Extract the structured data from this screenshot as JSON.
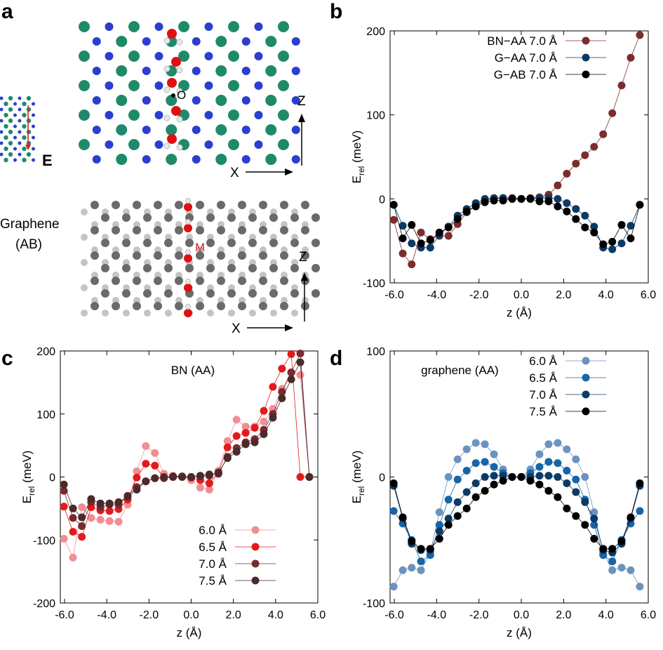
{
  "panel_labels": {
    "a": "a",
    "b": "b",
    "c": "c",
    "d": "d"
  },
  "structures": {
    "field_label": "E",
    "oxygen_label": "O",
    "midpoint_label": "M",
    "graphene_label_line1": "Graphene",
    "graphene_label_line2": "(AB)",
    "axis_x": "X",
    "axis_z": "Z"
  },
  "colors": {
    "bn_aa_7": "#7b2d2d",
    "g_aa_7": "#0d3a64",
    "g_ab_7": "#000000",
    "bn_60": "#f08e93",
    "bn_65": "#e31a1c",
    "bn_70": "#7a2a30",
    "bn_75": "#4a2a2a",
    "g_60": "#6b93bf",
    "g_65": "#1565a8",
    "g_70": "#0d3a64",
    "g_75": "#000000"
  },
  "chart_data": [
    {
      "panel": "b",
      "type": "line",
      "title": "",
      "xlabel": "z (Å)",
      "ylabel": "E",
      "ylabel_sub": "rel",
      "ylabel_unit": "(meV)",
      "xlim": [
        -6.2,
        6.0
      ],
      "ylim": [
        -100,
        200
      ],
      "xticks": [
        "-6.0",
        "-4.0",
        "-2.0",
        "0.0",
        "2.0",
        "4.0",
        "6.0"
      ],
      "xtick_values": [
        -6,
        -4,
        -2,
        0,
        2,
        4,
        6
      ],
      "yticks": [
        "-100",
        "0",
        "100",
        "200"
      ],
      "ytick_values": [
        -100,
        0,
        100,
        200
      ],
      "legend_position": "top-right",
      "series": [
        {
          "name": "BN−AA 7.0 Å",
          "color_key": "bn_aa_7",
          "x": [
            -6.03,
            -5.6,
            -5.18,
            -4.74,
            -4.3,
            -3.87,
            -3.44,
            -3.01,
            -2.58,
            -2.15,
            -1.72,
            -1.29,
            -0.86,
            -0.43,
            0,
            0.43,
            0.86,
            1.29,
            1.72,
            2.15,
            2.58,
            3.01,
            3.44,
            3.87,
            4.3,
            4.74,
            5.17,
            5.6
          ],
          "y": [
            -25,
            -65,
            -78,
            -40,
            -48,
            -44,
            -44,
            -30,
            -16,
            -7,
            -2,
            0,
            1,
            1,
            0,
            1,
            2,
            5,
            16,
            30,
            42,
            52,
            62,
            77,
            102,
            135,
            168,
            195
          ]
        },
        {
          "name": "G−AA 7.0 Å",
          "color_key": "g_aa_7",
          "x": [
            -6.03,
            -5.6,
            -5.18,
            -4.74,
            -4.3,
            -3.87,
            -3.44,
            -3.01,
            -2.58,
            -2.15,
            -1.72,
            -1.29,
            -0.86,
            -0.43,
            0,
            0.43,
            0.86,
            1.29,
            1.72,
            2.15,
            2.58,
            3.01,
            3.44,
            3.87,
            4.3,
            4.74,
            5.17,
            5.6
          ],
          "y": [
            -7,
            -32,
            -53,
            -58,
            -58,
            -43,
            -33,
            -20,
            -12,
            -5,
            0,
            1,
            1,
            0,
            0,
            0,
            1,
            1,
            0,
            -5,
            -12,
            -20,
            -33,
            -58,
            -60,
            -53,
            -32,
            -7
          ]
        },
        {
          "name": "G−AB 7.0 Å",
          "color_key": "g_ab_7",
          "x": [
            -6.03,
            -5.6,
            -5.18,
            -4.74,
            -4.3,
            -3.87,
            -3.44,
            -3.01,
            -2.58,
            -2.15,
            -1.72,
            -1.29,
            -0.86,
            -0.43,
            0,
            0.43,
            0.86,
            1.29,
            1.72,
            2.15,
            2.58,
            3.01,
            3.44,
            3.87,
            4.3,
            4.74,
            5.17,
            5.6
          ],
          "y": [
            -7,
            -47,
            -31,
            -53,
            -49,
            -40,
            -34,
            -24,
            -15,
            -9,
            -4,
            -2,
            -2,
            0,
            0,
            0,
            -3,
            -3,
            -9,
            -15,
            -24,
            -34,
            -40,
            -54,
            -51,
            -31,
            -47,
            -7
          ]
        }
      ]
    },
    {
      "panel": "c",
      "type": "line",
      "title": "BN (AA)",
      "xlabel": "z (Å)",
      "ylabel": "E",
      "ylabel_sub": "rel",
      "ylabel_unit": "(meV)",
      "xlim": [
        -6.2,
        6.0
      ],
      "ylim": [
        -200,
        200
      ],
      "xticks": [
        "-6.0",
        "-4.0",
        "-2.0",
        "0.0",
        "2.0",
        "4.0",
        "6.0"
      ],
      "xtick_values": [
        -6,
        -4,
        -2,
        0,
        2,
        4,
        6
      ],
      "yticks": [
        "-200",
        "-100",
        "0",
        "100",
        "200"
      ],
      "ytick_values": [
        -200,
        -100,
        0,
        100,
        200
      ],
      "legend_position": "bottom-right",
      "series": [
        {
          "name": "6.0 Å",
          "color_key": "bn_60",
          "x": [
            -6.03,
            -5.6,
            -5.18,
            -4.74,
            -4.3,
            -3.87,
            -3.44,
            -3.01,
            -2.58,
            -2.15,
            -1.72,
            -1.29,
            -0.86,
            -0.43,
            0,
            0.43,
            0.86,
            1.29,
            1.72,
            2.15,
            2.58,
            3.01,
            3.44,
            3.87,
            4.3,
            4.74,
            5.17,
            5.6
          ],
          "y": [
            -98,
            -128,
            -48,
            -65,
            -68,
            -70,
            -71,
            -44,
            9,
            49,
            38,
            5,
            2,
            0,
            -5,
            -17,
            -20,
            10,
            57,
            91,
            80,
            80,
            88,
            108,
            140,
            165,
            162,
            0
          ]
        },
        {
          "name": "6.5 Å",
          "color_key": "bn_65",
          "x": [
            -6.03,
            -5.6,
            -5.18,
            -4.74,
            -4.3,
            -3.87,
            -3.44,
            -3.01,
            -2.58,
            -2.15,
            -1.72,
            -1.29,
            -0.86,
            -0.43,
            0,
            0.43,
            0.86,
            1.29,
            1.72,
            2.15,
            2.58,
            3.01,
            3.44,
            3.87,
            4.3,
            4.74,
            5.17,
            5.6
          ],
          "y": [
            -47,
            -87,
            -95,
            -48,
            -53,
            -54,
            -51,
            -36,
            -1,
            21,
            18,
            -2,
            0,
            0,
            -1,
            -5,
            -10,
            7,
            47,
            65,
            70,
            78,
            105,
            143,
            172,
            195,
            0,
            0
          ]
        },
        {
          "name": "7.0 Å",
          "color_key": "bn_70",
          "x": [
            -6.03,
            -5.6,
            -5.18,
            -4.74,
            -4.3,
            -3.87,
            -3.44,
            -3.01,
            -2.58,
            -2.15,
            -1.72,
            -1.29,
            -0.86,
            -0.43,
            0,
            0.43,
            0.86,
            1.29,
            1.72,
            2.15,
            2.58,
            3.01,
            3.44,
            3.87,
            4.3,
            4.74,
            5.17,
            5.6
          ],
          "y": [
            -22,
            -65,
            -78,
            -40,
            -48,
            -44,
            -44,
            -30,
            -16,
            -7,
            -2,
            0,
            1,
            1,
            0,
            1,
            2,
            5,
            32,
            46,
            55,
            60,
            75,
            100,
            135,
            166,
            196,
            0
          ]
        },
        {
          "name": "7.5 Å",
          "color_key": "bn_75",
          "x": [
            -6.03,
            -5.6,
            -5.18,
            -4.74,
            -4.3,
            -3.87,
            -3.44,
            -3.01,
            -2.58,
            -2.15,
            -1.72,
            -1.29,
            -0.86,
            -0.43,
            0,
            0.43,
            0.86,
            1.29,
            1.72,
            2.15,
            2.58,
            3.01,
            3.44,
            3.87,
            4.3,
            4.74,
            5.17,
            5.6
          ],
          "y": [
            -12,
            -50,
            -64,
            -35,
            -42,
            -42,
            -40,
            -31,
            -20,
            -7,
            -2,
            -1,
            0,
            0,
            0,
            2,
            4,
            7,
            30,
            40,
            52,
            55,
            68,
            94,
            125,
            155,
            182,
            0
          ]
        }
      ]
    },
    {
      "panel": "d",
      "type": "line",
      "title": "graphene (AA)",
      "xlabel": "z (Å)",
      "ylabel": "E",
      "ylabel_sub": "rel",
      "ylabel_unit": "(meV)",
      "xlim": [
        -6.2,
        6.0
      ],
      "ylim": [
        -100,
        100
      ],
      "xticks": [
        "-6.0",
        "-4.0",
        "-2.0",
        "0.0",
        "2.0",
        "4.0",
        "6.0"
      ],
      "xtick_values": [
        -6,
        -4,
        -2,
        0,
        2,
        4,
        6
      ],
      "yticks": [
        "-100",
        "0",
        "100"
      ],
      "ytick_values": [
        -100,
        0,
        100
      ],
      "legend_position": "top-right",
      "series": [
        {
          "name": "6.0 Å",
          "color_key": "g_60",
          "x": [
            -6.03,
            -5.6,
            -5.18,
            -4.74,
            -4.3,
            -3.87,
            -3.44,
            -3.01,
            -2.58,
            -2.15,
            -1.72,
            -1.29,
            -0.86,
            -0.43,
            0,
            0.43,
            0.86,
            1.29,
            1.72,
            2.15,
            2.58,
            3.01,
            3.44,
            3.87,
            4.3,
            4.74,
            5.17,
            5.6
          ],
          "y": [
            -87,
            -74,
            -72,
            -74,
            -60,
            -28,
            0,
            14,
            22,
            27,
            26,
            18,
            6,
            0,
            0,
            6,
            18,
            26,
            27,
            22,
            14,
            0,
            -28,
            -60,
            -74,
            -72,
            -74,
            -87
          ]
        },
        {
          "name": "6.5 Å",
          "color_key": "g_65",
          "x": [
            -6.03,
            -5.6,
            -5.18,
            -4.74,
            -4.3,
            -3.87,
            -3.44,
            -3.01,
            -2.58,
            -2.15,
            -1.72,
            -1.29,
            -0.86,
            -0.43,
            0,
            0.43,
            0.86,
            1.29,
            1.72,
            2.15,
            2.58,
            3.01,
            3.44,
            3.87,
            4.3,
            4.74,
            5.17,
            5.6
          ],
          "y": [
            -27,
            -37,
            -50,
            -67,
            -62,
            -38,
            -18,
            -2,
            5,
            11,
            12,
            8,
            3,
            0,
            0,
            3,
            8,
            12,
            11,
            5,
            -2,
            -18,
            -38,
            -62,
            -67,
            -50,
            -37,
            -27
          ]
        },
        {
          "name": "7.0 Å",
          "color_key": "g_70",
          "x": [
            -6.03,
            -5.6,
            -5.18,
            -4.74,
            -4.3,
            -3.87,
            -3.44,
            -3.01,
            -2.58,
            -2.15,
            -1.72,
            -1.29,
            -0.86,
            -0.43,
            0,
            0.43,
            0.86,
            1.29,
            1.72,
            2.15,
            2.58,
            3.01,
            3.44,
            3.87,
            4.3,
            4.74,
            5.17,
            5.6
          ],
          "y": [
            -7,
            -33,
            -53,
            -58,
            -58,
            -43,
            -33,
            -20,
            -12,
            -5,
            0,
            1,
            1,
            0,
            0,
            0,
            1,
            1,
            0,
            -5,
            -12,
            -20,
            -33,
            -58,
            -60,
            -53,
            -33,
            -7
          ]
        },
        {
          "name": "7.5 Å",
          "color_key": "g_75",
          "x": [
            -6.03,
            -5.6,
            -5.18,
            -4.74,
            -4.3,
            -3.87,
            -3.44,
            -3.01,
            -2.58,
            -2.15,
            -1.72,
            -1.29,
            -0.86,
            -0.43,
            0,
            0.43,
            0.86,
            1.29,
            1.72,
            2.15,
            2.58,
            3.01,
            3.44,
            3.87,
            4.3,
            4.74,
            5.17,
            5.6
          ],
          "y": [
            -5,
            -32,
            -51,
            -57,
            -57,
            -49,
            -38,
            -31,
            -25,
            -16,
            -11,
            -6,
            -3,
            0,
            0,
            -3,
            -6,
            -11,
            -16,
            -25,
            -31,
            -38,
            -49,
            -57,
            -57,
            -51,
            -32,
            -5
          ]
        }
      ]
    }
  ]
}
